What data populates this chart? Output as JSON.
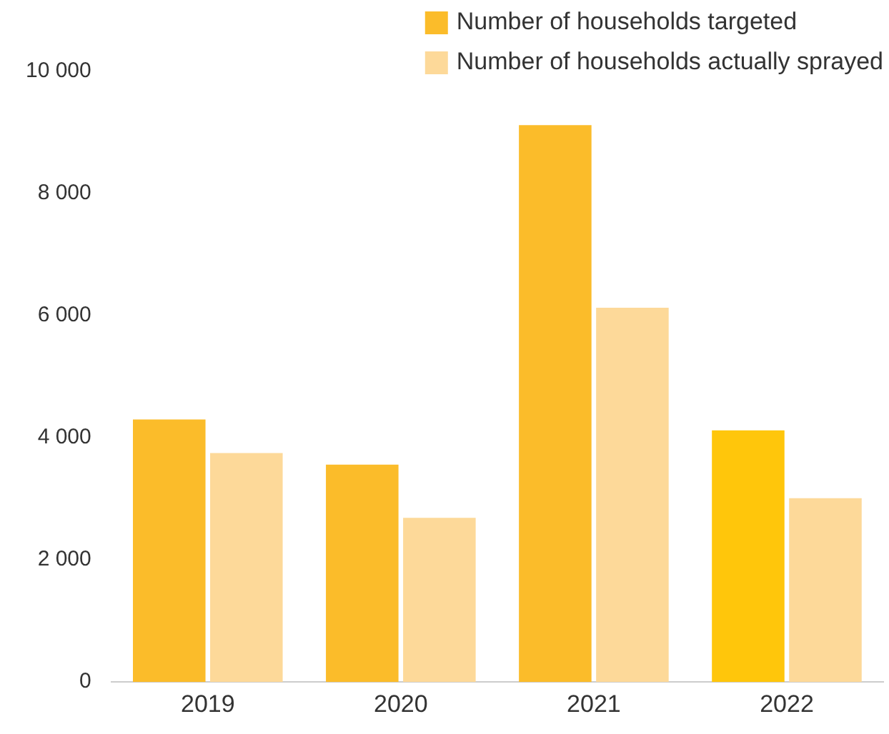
{
  "chart_data": {
    "type": "bar",
    "categories": [
      "2019",
      "2020",
      "2021",
      "2022"
    ],
    "series": [
      {
        "name": "Number of households targeted",
        "color": "#fbbc2a",
        "colors": [
          "#fbbc2a",
          "#fbbc2a",
          "#fbbc2a",
          "#ffc60b"
        ],
        "values": [
          4300,
          3560,
          9120,
          4120
        ]
      },
      {
        "name": "Number of households actually sprayed",
        "color": "#fdd999",
        "values": [
          3750,
          2690,
          6130,
          3010
        ]
      }
    ],
    "ylim": [
      0,
      10000
    ],
    "yticks": [
      {
        "value": 0,
        "label": "0"
      },
      {
        "value": 2000,
        "label": "2 000"
      },
      {
        "value": 4000,
        "label": "4 000"
      },
      {
        "value": 6000,
        "label": "6 000"
      },
      {
        "value": 8000,
        "label": "8 000"
      },
      {
        "value": 10000,
        "label": "10 000"
      }
    ],
    "grid": false,
    "legend": "top right"
  }
}
